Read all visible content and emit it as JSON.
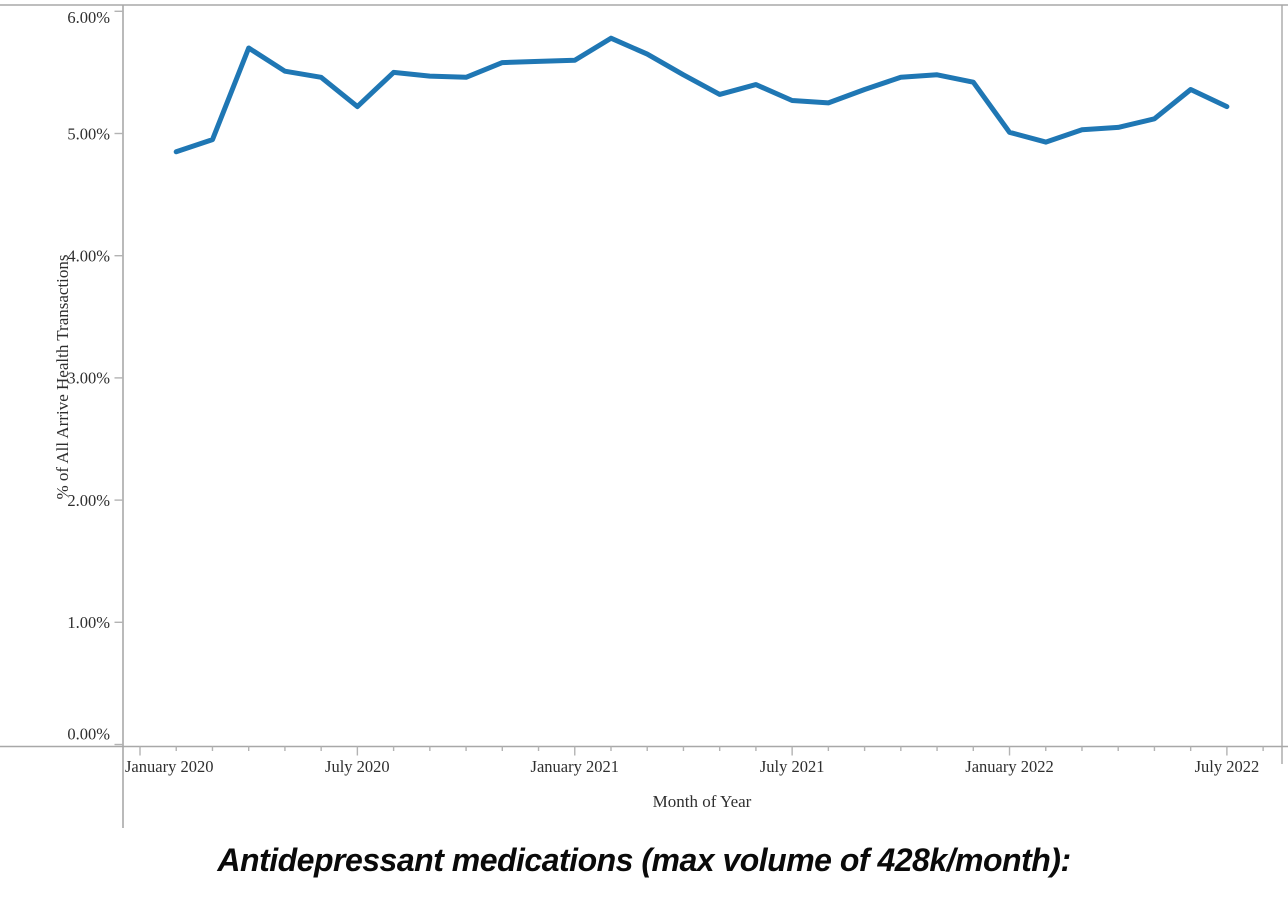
{
  "chart_data": {
    "type": "line",
    "title": "",
    "xlabel": "Month of Year",
    "ylabel": "% of All Arrive Health Transactions",
    "x": [
      "February 2020",
      "March 2020",
      "April 2020",
      "May 2020",
      "June 2020",
      "July 2020",
      "August 2020",
      "September 2020",
      "October 2020",
      "November 2020",
      "December 2020",
      "January 2021",
      "February 2021",
      "March 2021",
      "April 2021",
      "May 2021",
      "June 2021",
      "July 2021",
      "August 2021",
      "September 2021",
      "October 2021",
      "November 2021",
      "December 2021",
      "January 2022",
      "February 2022",
      "March 2022",
      "April 2022",
      "May 2022",
      "June 2022",
      "July 2022"
    ],
    "values": [
      4.85,
      4.95,
      5.7,
      5.51,
      5.46,
      5.22,
      5.5,
      5.47,
      5.46,
      5.58,
      5.59,
      5.6,
      5.78,
      5.65,
      5.48,
      5.32,
      5.4,
      5.27,
      5.25,
      5.36,
      5.46,
      5.48,
      5.42,
      5.01,
      4.93,
      5.03,
      5.05,
      5.12,
      5.36,
      5.22
    ],
    "x_tick_labels": [
      "January 2020",
      "July 2020",
      "January 2021",
      "July 2021",
      "January 2022",
      "July 2022"
    ],
    "y_tick_labels": [
      "0.00%",
      "1.00%",
      "2.00%",
      "3.00%",
      "4.00%",
      "5.00%",
      "6.00%"
    ],
    "ylim": [
      0,
      6.05
    ],
    "x_axis_months_shown": 32,
    "grid": false,
    "legend": "none",
    "line_color": "#1F77B4"
  },
  "caption": "Antidepressant medications (max volume of 428k/month):"
}
